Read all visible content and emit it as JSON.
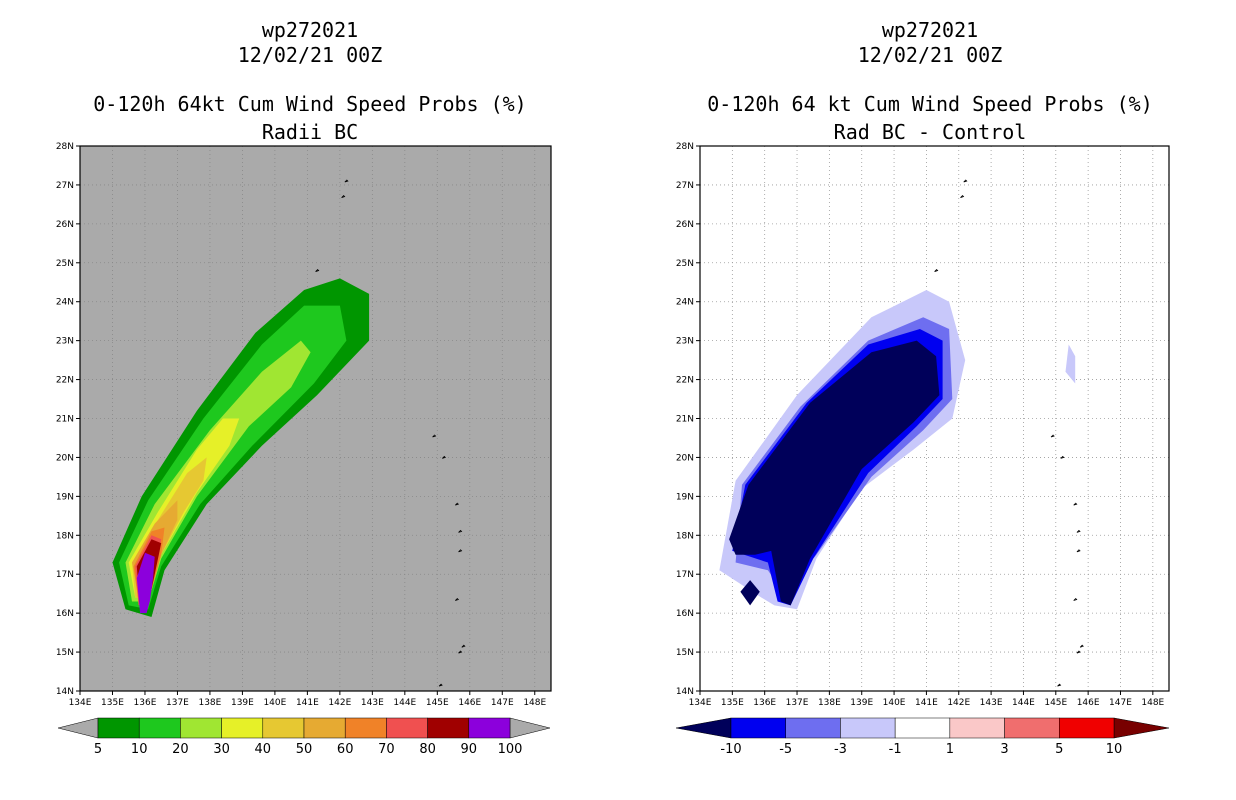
{
  "chart_data": [
    {
      "type": "contour_map",
      "title": "wp272021",
      "date": "12/02/21 00Z",
      "subtitle": "0-120h 64kt Cum Wind Speed Probs (%)",
      "subtitle2": "Radii BC",
      "xlim": [
        134,
        148.5
      ],
      "ylim": [
        14,
        28
      ],
      "x_ticks": [
        "134E",
        "135E",
        "136E",
        "137E",
        "138E",
        "139E",
        "140E",
        "141E",
        "142E",
        "143E",
        "144E",
        "145E",
        "146E",
        "147E",
        "148E"
      ],
      "y_ticks": [
        "14N",
        "15N",
        "16N",
        "17N",
        "18N",
        "19N",
        "20N",
        "21N",
        "22N",
        "23N",
        "24N",
        "25N",
        "26N",
        "27N",
        "28N"
      ],
      "background": "#aaaaaa",
      "colorbar": {
        "labels": [
          "5",
          "10",
          "20",
          "30",
          "40",
          "50",
          "60",
          "70",
          "80",
          "90",
          "100"
        ],
        "colors": [
          "#009600",
          "#1ec81e",
          "#a0e632",
          "#e6f028",
          "#e6c832",
          "#e6aa32",
          "#f08228",
          "#f05050",
          "#a00000",
          "#8c00dc"
        ]
      },
      "contours": [
        {
          "level": 5,
          "color": "#009600",
          "points": [
            [
              135.4,
              16.1
            ],
            [
              135.0,
              17.3
            ],
            [
              135.9,
              19.0
            ],
            [
              137.6,
              21.2
            ],
            [
              139.4,
              23.2
            ],
            [
              140.9,
              24.3
            ],
            [
              142.0,
              24.6
            ],
            [
              142.9,
              24.2
            ],
            [
              142.9,
              23.0
            ],
            [
              141.3,
              21.6
            ],
            [
              139.6,
              20.3
            ],
            [
              137.9,
              18.8
            ],
            [
              136.6,
              17.1
            ],
            [
              136.2,
              15.9
            ]
          ]
        },
        {
          "level": 10,
          "color": "#1ec81e",
          "points": [
            [
              135.5,
              16.2
            ],
            [
              135.2,
              17.3
            ],
            [
              136.1,
              18.9
            ],
            [
              137.8,
              21.0
            ],
            [
              139.6,
              22.9
            ],
            [
              140.9,
              23.9
            ],
            [
              142.0,
              23.9
            ],
            [
              142.2,
              23.0
            ],
            [
              141.2,
              21.9
            ],
            [
              139.3,
              20.3
            ],
            [
              137.7,
              18.8
            ],
            [
              136.5,
              17.2
            ],
            [
              136.1,
              16.1
            ]
          ]
        },
        {
          "level": 20,
          "color": "#a0e632",
          "points": [
            [
              135.6,
              16.3
            ],
            [
              135.4,
              17.3
            ],
            [
              136.3,
              18.8
            ],
            [
              138.0,
              20.7
            ],
            [
              139.6,
              22.2
            ],
            [
              140.8,
              23.0
            ],
            [
              141.1,
              22.7
            ],
            [
              140.5,
              21.8
            ],
            [
              139.2,
              20.8
            ],
            [
              137.6,
              19.0
            ],
            [
              136.5,
              17.4
            ],
            [
              136.1,
              16.3
            ]
          ]
        },
        {
          "level": 30,
          "color": "#e6f028",
          "points": [
            [
              135.7,
              16.4
            ],
            [
              135.5,
              17.3
            ],
            [
              136.4,
              18.6
            ],
            [
              137.6,
              20.2
            ],
            [
              138.4,
              21.0
            ],
            [
              138.9,
              21.0
            ],
            [
              138.6,
              20.3
            ],
            [
              137.6,
              19.1
            ],
            [
              136.5,
              17.5
            ],
            [
              136.1,
              16.4
            ]
          ]
        },
        {
          "level": 40,
          "color": "#e6c832",
          "points": [
            [
              135.7,
              16.4
            ],
            [
              135.6,
              17.3
            ],
            [
              136.4,
              18.4
            ],
            [
              137.3,
              19.6
            ],
            [
              137.9,
              20.0
            ],
            [
              137.8,
              19.4
            ],
            [
              137.2,
              18.6
            ],
            [
              136.5,
              17.5
            ],
            [
              136.1,
              16.4
            ]
          ]
        },
        {
          "level": 50,
          "color": "#e6aa32",
          "points": [
            [
              135.8,
              16.4
            ],
            [
              135.6,
              17.3
            ],
            [
              136.3,
              18.3
            ],
            [
              137.0,
              18.9
            ],
            [
              137.0,
              18.4
            ],
            [
              136.5,
              17.5
            ],
            [
              136.1,
              16.4
            ]
          ]
        },
        {
          "level": 70,
          "color": "#f08228",
          "points": [
            [
              135.8,
              16.3
            ],
            [
              135.65,
              17.2
            ],
            [
              136.2,
              18.1
            ],
            [
              136.6,
              18.2
            ],
            [
              136.5,
              17.5
            ],
            [
              136.1,
              16.3
            ]
          ]
        },
        {
          "level": 80,
          "color": "#f05050",
          "points": [
            [
              135.8,
              16.2
            ],
            [
              135.7,
              17.2
            ],
            [
              136.2,
              18.0
            ],
            [
              136.5,
              17.9
            ],
            [
              136.4,
              17.4
            ],
            [
              136.05,
              16.3
            ]
          ]
        },
        {
          "level": 90,
          "color": "#a00000",
          "points": [
            [
              135.85,
              16.1
            ],
            [
              135.75,
              17.2
            ],
            [
              136.2,
              17.9
            ],
            [
              136.5,
              17.8
            ],
            [
              136.4,
              17.4
            ],
            [
              136.1,
              16.2
            ]
          ]
        },
        {
          "level": 100,
          "color": "#8c00dc",
          "points": [
            [
              135.85,
              16.0
            ],
            [
              135.75,
              16.9
            ],
            [
              136.0,
              17.55
            ],
            [
              136.3,
              17.45
            ],
            [
              136.25,
              16.9
            ],
            [
              136.15,
              16.3
            ],
            [
              136.05,
              16.0
            ]
          ]
        }
      ]
    },
    {
      "type": "contour_map",
      "title": "wp272021",
      "date": "12/02/21 00Z",
      "subtitle": "0-120h 64 kt Cum Wind Speed Probs (%)",
      "subtitle2": "Rad BC - Control",
      "xlim": [
        134,
        148.5
      ],
      "ylim": [
        14,
        28
      ],
      "x_ticks": [
        "134E",
        "135E",
        "136E",
        "137E",
        "138E",
        "139E",
        "140E",
        "141E",
        "142E",
        "143E",
        "144E",
        "145E",
        "146E",
        "147E",
        "148E"
      ],
      "y_ticks": [
        "14N",
        "15N",
        "16N",
        "17N",
        "18N",
        "19N",
        "20N",
        "21N",
        "22N",
        "23N",
        "24N",
        "25N",
        "26N",
        "27N",
        "28N"
      ],
      "background": "#ffffff",
      "colorbar": {
        "labels": [
          "-10",
          "-5",
          "-3",
          "-1",
          "1",
          "3",
          "5",
          "10"
        ],
        "colors": [
          "#00005a",
          "#0000f0",
          "#6e6ef0",
          "#c8c8fa",
          "#ffffff",
          "#fac8c8",
          "#f06e6e",
          "#f00000",
          "#780000"
        ]
      },
      "contours": [
        {
          "level": -1,
          "color": "#c8c8fa",
          "points": [
            [
              135.9,
              16.4
            ],
            [
              134.6,
              17.1
            ],
            [
              135.1,
              19.4
            ],
            [
              137.0,
              21.6
            ],
            [
              139.3,
              23.6
            ],
            [
              141.0,
              24.3
            ],
            [
              141.7,
              24.0
            ],
            [
              142.2,
              22.5
            ],
            [
              141.8,
              21.0
            ],
            [
              140.6,
              20.2
            ],
            [
              139.0,
              19.2
            ],
            [
              137.6,
              17.4
            ],
            [
              137.0,
              16.1
            ],
            [
              136.3,
              16.2
            ]
          ]
        },
        {
          "level": -1,
          "color": "#c8c8fa",
          "points": [
            [
              145.4,
              22.9
            ],
            [
              145.6,
              22.6
            ],
            [
              145.6,
              21.9
            ],
            [
              145.3,
              22.2
            ]
          ]
        },
        {
          "level": -3,
          "color": "#6e6ef0",
          "points": [
            [
              135.1,
              17.3
            ],
            [
              135.3,
              19.3
            ],
            [
              137.1,
              21.3
            ],
            [
              139.2,
              23.0
            ],
            [
              140.9,
              23.6
            ],
            [
              141.7,
              23.3
            ],
            [
              141.8,
              21.5
            ],
            [
              140.9,
              20.7
            ],
            [
              139.3,
              19.5
            ],
            [
              137.6,
              17.5
            ],
            [
              136.6,
              16.5
            ],
            [
              136.1,
              17.1
            ]
          ]
        },
        {
          "level": -5,
          "color": "#0000f0",
          "points": [
            [
              135.0,
              17.6
            ],
            [
              135.4,
              19.3
            ],
            [
              137.3,
              21.4
            ],
            [
              139.2,
              22.9
            ],
            [
              140.8,
              23.3
            ],
            [
              141.5,
              23.0
            ],
            [
              141.5,
              21.5
            ],
            [
              140.7,
              20.8
            ],
            [
              139.2,
              19.6
            ],
            [
              137.5,
              17.4
            ],
            [
              136.8,
              16.2
            ],
            [
              136.4,
              16.3
            ],
            [
              136.1,
              17.3
            ]
          ]
        },
        {
          "level": -10,
          "color": "#00005a",
          "points": [
            [
              134.9,
              17.9
            ],
            [
              135.5,
              19.3
            ],
            [
              137.4,
              21.4
            ],
            [
              139.3,
              22.7
            ],
            [
              140.7,
              23.0
            ],
            [
              141.3,
              22.6
            ],
            [
              141.4,
              21.6
            ],
            [
              140.6,
              20.9
            ],
            [
              139.0,
              19.7
            ],
            [
              137.4,
              17.4
            ],
            [
              136.8,
              16.2
            ],
            [
              136.5,
              16.3
            ],
            [
              136.2,
              17.6
            ],
            [
              135.7,
              17.5
            ],
            [
              135.1,
              17.5
            ]
          ]
        },
        {
          "level": -10,
          "color": "#00005a",
          "points": [
            [
              135.25,
              16.55
            ],
            [
              135.55,
              16.85
            ],
            [
              135.85,
              16.55
            ],
            [
              135.55,
              16.2
            ]
          ]
        }
      ]
    }
  ]
}
